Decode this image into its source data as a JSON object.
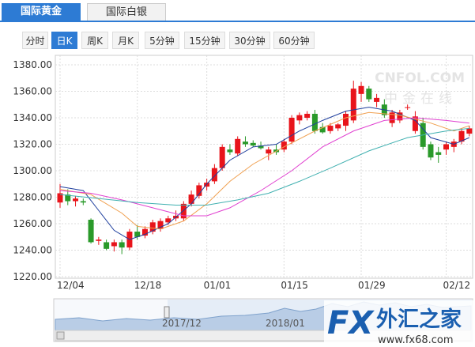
{
  "tabs": {
    "items": [
      "国际黄金",
      "国际白银"
    ],
    "active": 0
  },
  "periods": {
    "items": [
      "分时",
      "日K",
      "周K",
      "月K",
      "5分钟",
      "15分钟",
      "30分钟",
      "60分钟"
    ],
    "active": 1
  },
  "chart_data": {
    "type": "candlestick",
    "categories": [
      "12/04",
      null,
      null,
      null,
      null,
      null,
      null,
      null,
      null,
      null,
      "12/18",
      null,
      null,
      null,
      null,
      null,
      null,
      null,
      null,
      "01/01",
      null,
      null,
      null,
      null,
      null,
      null,
      null,
      null,
      null,
      "01/15",
      null,
      null,
      null,
      null,
      null,
      null,
      null,
      null,
      null,
      "01/29",
      null,
      null,
      null,
      null,
      null,
      null,
      null,
      null,
      null,
      null,
      "02/12",
      null,
      null,
      null
    ],
    "open": [
      1276,
      1282,
      1277,
      1277,
      1263,
      1247,
      1246,
      1243,
      1246,
      1242,
      1254,
      1251,
      1254,
      1256,
      1261,
      1264,
      1264,
      1275,
      1281,
      1288,
      1292,
      1302,
      1316,
      1313,
      1322,
      1321,
      1319,
      1313,
      1316,
      1316,
      1322,
      1338,
      1340,
      1343,
      1333,
      1330,
      1332,
      1334,
      1338,
      1358,
      1362,
      1352,
      1350,
      1336,
      1338,
      1348,
      1330,
      1336,
      1320,
      1314,
      1316,
      1318,
      1322,
      1328
    ],
    "high": [
      1290,
      1286,
      1281,
      1279,
      1264,
      1250,
      1248,
      1248,
      1248,
      1256,
      1259,
      1258,
      1263,
      1264,
      1266,
      1270,
      1277,
      1285,
      1291,
      1294,
      1305,
      1320,
      1320,
      1326,
      1326,
      1323,
      1322,
      1318,
      1320,
      1324,
      1342,
      1344,
      1345,
      1346,
      1336,
      1336,
      1336,
      1345,
      1368,
      1367,
      1364,
      1358,
      1354,
      1346,
      1346,
      1350,
      1345,
      1340,
      1322,
      1318,
      1322,
      1324,
      1332,
      1334
    ],
    "low": [
      1272,
      1274,
      1273,
      1274,
      1245,
      1244,
      1240,
      1239,
      1237,
      1240,
      1248,
      1249,
      1252,
      1254,
      1259,
      1262,
      1262,
      1273,
      1279,
      1285,
      1290,
      1300,
      1312,
      1311,
      1318,
      1318,
      1316,
      1308,
      1312,
      1314,
      1320,
      1335,
      1338,
      1328,
      1328,
      1328,
      1330,
      1330,
      1336,
      1352,
      1352,
      1348,
      1340,
      1333,
      1336,
      1346,
      1328,
      1316,
      1308,
      1306,
      1312,
      1314,
      1320,
      1326
    ],
    "close": [
      1283,
      1277,
      1279,
      1276,
      1246,
      1248,
      1241,
      1246,
      1242,
      1254,
      1250,
      1256,
      1261,
      1262,
      1264,
      1266,
      1275,
      1282,
      1289,
      1291,
      1302,
      1318,
      1314,
      1324,
      1320,
      1319,
      1317,
      1316,
      1314,
      1322,
      1340,
      1342,
      1343,
      1330,
      1329,
      1334,
      1335,
      1343,
      1362,
      1364,
      1354,
      1355,
      1342,
      1344,
      1344,
      1348,
      1341,
      1318,
      1310,
      1312,
      1320,
      1322,
      1330,
      1332
    ],
    "up_color": "#e8141b",
    "down_color": "#2a9a2a",
    "series": [
      {
        "color": "#1f3f9e",
        "x": [
          0,
          3,
          5,
          7,
          9,
          11,
          14,
          17,
          19,
          22,
          25,
          28,
          31,
          34,
          37,
          40,
          43,
          46,
          48,
          51,
          53
        ],
        "values": [
          1288,
          1285,
          1270,
          1255,
          1248,
          1252,
          1260,
          1275,
          1290,
          1308,
          1318,
          1320,
          1330,
          1338,
          1345,
          1348,
          1345,
          1338,
          1325,
          1320,
          1325
        ]
      },
      {
        "color": "#f0a050",
        "x": [
          0,
          4,
          8,
          10,
          13,
          16,
          19,
          22,
          25,
          29,
          33,
          37,
          40,
          44,
          48,
          51,
          53
        ],
        "values": [
          1286,
          1282,
          1268,
          1258,
          1256,
          1262,
          1275,
          1292,
          1305,
          1318,
          1330,
          1340,
          1344,
          1342,
          1336,
          1330,
          1334
        ]
      },
      {
        "color": "#e040d0",
        "x": [
          0,
          4,
          8,
          12,
          16,
          19,
          22,
          26,
          30,
          34,
          38,
          42,
          46,
          50,
          53
        ],
        "values": [
          1285,
          1283,
          1278,
          1272,
          1266,
          1266,
          1272,
          1285,
          1300,
          1318,
          1330,
          1338,
          1340,
          1338,
          1336
        ]
      },
      {
        "color": "#40b0b0",
        "x": [
          0,
          5,
          10,
          15,
          19,
          23,
          27,
          31,
          35,
          40,
          45,
          50,
          53
        ],
        "values": [
          1282,
          1279,
          1276,
          1274,
          1274,
          1278,
          1283,
          1292,
          1302,
          1315,
          1325,
          1330,
          1332
        ]
      }
    ],
    "ylim": [
      1220,
      1380
    ],
    "yticks": [
      {
        "value": 1220,
        "label": "1220.00"
      },
      {
        "value": 1240,
        "label": "1240.00"
      },
      {
        "value": 1260,
        "label": "1260.00"
      },
      {
        "value": 1280,
        "label": "1280.00"
      },
      {
        "value": 1300,
        "label": "1300.00"
      },
      {
        "value": 1320,
        "label": "1320.00"
      },
      {
        "value": 1340,
        "label": "1340.00"
      },
      {
        "value": 1360,
        "label": "1360.00"
      },
      {
        "value": 1380,
        "label": "1380.00"
      }
    ],
    "grid": true
  },
  "navigator": {
    "labels": [
      "2017/12",
      "2018/01"
    ]
  },
  "watermark": {
    "brand": "CNFOL.COM",
    "name": "中金在线"
  },
  "logo": {
    "mark": "FX",
    "name": "外汇之家",
    "url": "www.fx68.com"
  }
}
